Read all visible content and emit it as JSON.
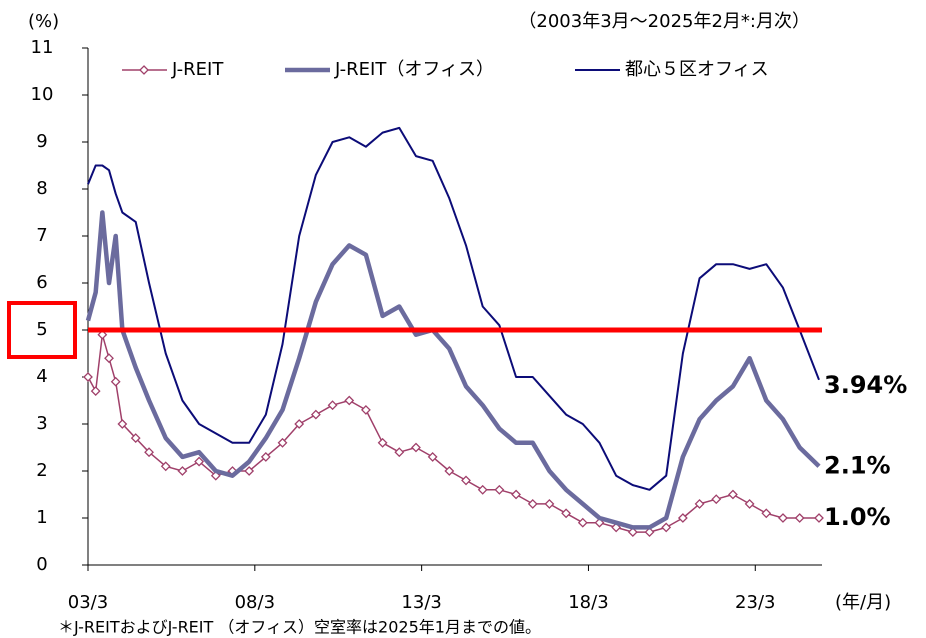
{
  "chart_data": {
    "type": "line",
    "subtitle": "（2003年3月～2025年2月*:月次）",
    "y_label": "(%)",
    "x_label": "(年/月)",
    "footnote": "＊J-REITおよびJ-REIT （オフィス）空室率は2025年1月までの値。",
    "x": [
      2003.17,
      2003.4,
      2003.6,
      2003.8,
      2004.0,
      2004.2,
      2004.6,
      2005.0,
      2005.5,
      2006.0,
      2006.5,
      2007.0,
      2007.5,
      2008.0,
      2008.5,
      2009.0,
      2009.5,
      2010.0,
      2010.5,
      2011.0,
      2011.5,
      2012.0,
      2012.5,
      2013.0,
      2013.5,
      2014.0,
      2014.5,
      2015.0,
      2015.5,
      2016.0,
      2016.5,
      2017.0,
      2017.5,
      2018.0,
      2018.5,
      2019.0,
      2019.5,
      2020.0,
      2020.5,
      2021.0,
      2021.5,
      2022.0,
      2022.5,
      2023.0,
      2023.5,
      2024.0,
      2024.5,
      2025.08
    ],
    "series": [
      {
        "name": "J-REIT",
        "color": "#a0406a",
        "width": 1.5,
        "marker": "diamond",
        "end_label": "1.0%",
        "end_label_color": "#9a3a3a",
        "values": [
          4.0,
          3.7,
          4.9,
          4.4,
          3.9,
          3.0,
          2.7,
          2.4,
          2.1,
          2.0,
          2.2,
          1.9,
          2.0,
          2.0,
          2.3,
          2.6,
          3.0,
          3.2,
          3.4,
          3.5,
          3.3,
          2.6,
          2.4,
          2.5,
          2.3,
          2.0,
          1.8,
          1.6,
          1.6,
          1.5,
          1.3,
          1.3,
          1.1,
          0.9,
          0.9,
          0.8,
          0.7,
          0.7,
          0.8,
          1.0,
          1.3,
          1.4,
          1.5,
          1.3,
          1.1,
          1.0,
          1.0,
          1.0
        ]
      },
      {
        "name": "J-REIT（オフィス）",
        "color": "#6b6b9e",
        "width": 4.5,
        "end_label": "2.1%",
        "end_label_color": "#6b6b9e",
        "values": [
          5.2,
          5.8,
          7.5,
          6.0,
          7.0,
          5.0,
          4.2,
          3.5,
          2.7,
          2.3,
          2.4,
          2.0,
          1.9,
          2.2,
          2.7,
          3.3,
          4.4,
          5.6,
          6.4,
          6.8,
          6.6,
          5.3,
          5.5,
          4.9,
          5.0,
          4.6,
          3.8,
          3.4,
          2.9,
          2.6,
          2.6,
          2.0,
          1.6,
          1.3,
          1.0,
          0.9,
          0.8,
          0.8,
          1.0,
          2.3,
          3.1,
          3.5,
          3.8,
          4.4,
          3.5,
          3.1,
          2.5,
          2.1
        ]
      },
      {
        "name": "都心５区オフィス",
        "color": "#0c0c78",
        "width": 2,
        "end_label": "3.94%",
        "end_label_color": "#3a3af0",
        "values": [
          8.1,
          8.5,
          8.5,
          8.4,
          7.9,
          7.5,
          7.3,
          6.0,
          4.5,
          3.5,
          3.0,
          2.8,
          2.6,
          2.6,
          3.2,
          4.7,
          7.0,
          8.3,
          9.0,
          9.1,
          8.9,
          9.2,
          9.3,
          8.7,
          8.6,
          7.8,
          6.8,
          5.5,
          5.1,
          4.0,
          4.0,
          3.6,
          3.2,
          3.0,
          2.6,
          1.9,
          1.7,
          1.6,
          1.9,
          4.5,
          6.1,
          6.4,
          6.4,
          6.3,
          6.4,
          5.9,
          5.0,
          3.94
        ]
      }
    ],
    "xlim": [
      2003.17,
      2025.17
    ],
    "xticks": [
      {
        "value": 2003.17,
        "label": "03/3"
      },
      {
        "value": 2008.17,
        "label": "08/3"
      },
      {
        "value": 2013.17,
        "label": "13/3"
      },
      {
        "value": 2018.17,
        "label": "18/3"
      },
      {
        "value": 2023.17,
        "label": "23/3"
      }
    ],
    "ylim": [
      0,
      11
    ],
    "yticks": [
      0,
      1,
      2,
      3,
      4,
      5,
      6,
      7,
      8,
      9,
      10,
      11
    ],
    "reference_line": {
      "value": 5,
      "color": "#ff0000"
    },
    "legend": "top"
  }
}
